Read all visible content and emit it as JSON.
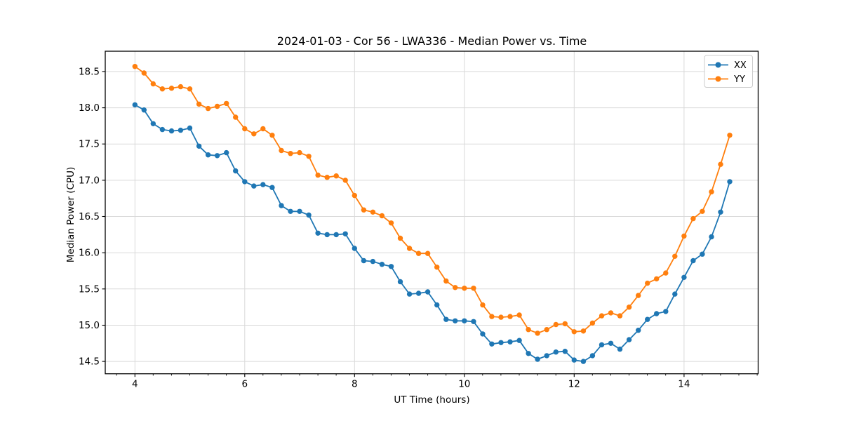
{
  "chart_data": {
    "type": "line",
    "title": "2024-01-03 - Cor 56 - LWA336 - Median Power vs. Time",
    "xlabel": "UT Time (hours)",
    "ylabel": "Median Power (CPU)",
    "grid": true,
    "legend_position": "upper right",
    "marker": "circle",
    "xlim": [
      3.46,
      15.35
    ],
    "ylim": [
      14.33,
      18.78
    ],
    "x_ticks": [
      4,
      6,
      8,
      10,
      12,
      14
    ],
    "x_minor_tick_step": 0.3333,
    "y_ticks": [
      14.5,
      15.0,
      15.5,
      16.0,
      16.5,
      17.0,
      17.5,
      18.0,
      18.5
    ],
    "x": [
      4.0,
      4.167,
      4.333,
      4.5,
      4.667,
      4.833,
      5.0,
      5.167,
      5.333,
      5.5,
      5.667,
      5.833,
      6.0,
      6.167,
      6.333,
      6.5,
      6.667,
      6.833,
      7.0,
      7.167,
      7.333,
      7.5,
      7.667,
      7.833,
      8.0,
      8.167,
      8.333,
      8.5,
      8.667,
      8.833,
      9.0,
      9.167,
      9.333,
      9.5,
      9.667,
      9.833,
      10.0,
      10.167,
      10.333,
      10.5,
      10.667,
      10.833,
      11.0,
      11.167,
      11.333,
      11.5,
      11.667,
      11.833,
      12.0,
      12.167,
      12.333,
      12.5,
      12.667,
      12.833,
      13.0,
      13.167,
      13.333,
      13.5,
      13.667,
      13.833,
      14.0,
      14.167,
      14.333,
      14.5,
      14.667,
      14.833
    ],
    "series": [
      {
        "name": "XX",
        "color": "#1f77b4",
        "values": [
          18.04,
          17.97,
          17.78,
          17.7,
          17.68,
          17.69,
          17.72,
          17.47,
          17.35,
          17.34,
          17.38,
          17.13,
          16.98,
          16.92,
          16.94,
          16.9,
          16.65,
          16.57,
          16.57,
          16.52,
          16.27,
          16.25,
          16.25,
          16.26,
          16.06,
          15.89,
          15.88,
          15.84,
          15.81,
          15.6,
          15.43,
          15.44,
          15.46,
          15.28,
          15.08,
          15.06,
          15.06,
          15.05,
          14.88,
          14.74,
          14.76,
          14.77,
          14.79,
          14.61,
          14.53,
          14.58,
          14.63,
          14.64,
          14.52,
          14.5,
          14.58,
          14.73,
          14.75,
          14.67,
          14.8,
          14.93,
          15.08,
          15.16,
          15.19,
          15.43,
          15.66,
          15.89,
          15.98,
          16.22,
          16.56,
          16.98
        ]
      },
      {
        "name": "YY",
        "color": "#ff7f0e",
        "values": [
          18.57,
          18.48,
          18.33,
          18.26,
          18.27,
          18.29,
          18.26,
          18.05,
          17.99,
          18.02,
          18.06,
          17.87,
          17.71,
          17.64,
          17.71,
          17.62,
          17.41,
          17.37,
          17.38,
          17.33,
          17.07,
          17.04,
          17.06,
          17.0,
          16.79,
          16.59,
          16.56,
          16.51,
          16.41,
          16.2,
          16.06,
          15.99,
          15.99,
          15.8,
          15.61,
          15.52,
          15.51,
          15.51,
          15.28,
          15.12,
          15.11,
          15.12,
          15.14,
          14.94,
          14.89,
          14.94,
          15.01,
          15.02,
          14.91,
          14.92,
          15.03,
          15.13,
          15.17,
          15.13,
          15.25,
          15.41,
          15.58,
          15.64,
          15.72,
          15.95,
          16.23,
          16.47,
          16.57,
          16.84,
          17.22,
          17.62
        ]
      }
    ],
    "style": {
      "grid_color": "#d9d9d9",
      "spine_color": "#000000",
      "background": "#ffffff",
      "line_width": 1.8,
      "marker_radius": 3.7
    }
  }
}
